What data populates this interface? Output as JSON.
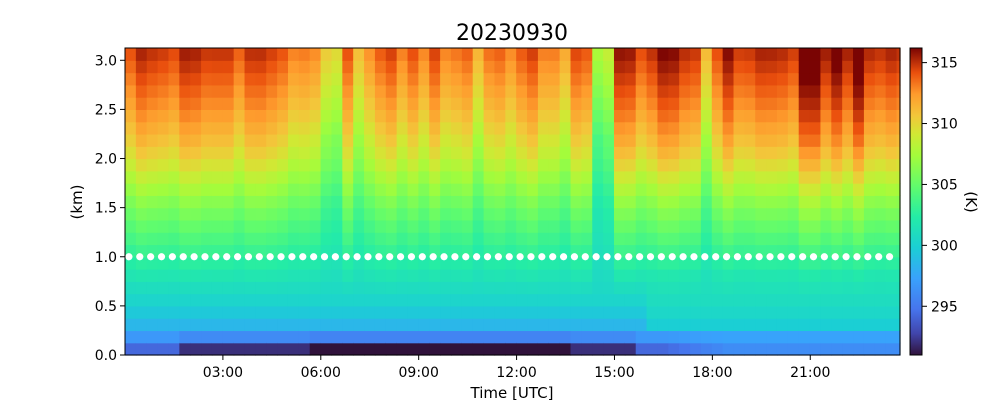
{
  "chart_data": {
    "type": "heatmap",
    "title": "20230930",
    "xlabel": "Time [UTC]",
    "ylabel": "(km)",
    "colorbar_label": "(K)",
    "colormap": "turbo",
    "x_range_hours": [
      0,
      23.75
    ],
    "x_ticks": [
      {
        "value": 3,
        "label": "03:00"
      },
      {
        "value": 6,
        "label": "06:00"
      },
      {
        "value": 9,
        "label": "09:00"
      },
      {
        "value": 12,
        "label": "12:00"
      },
      {
        "value": 15,
        "label": "15:00"
      },
      {
        "value": 18,
        "label": "18:00"
      },
      {
        "value": 21,
        "label": "21:00"
      }
    ],
    "y_range_km": [
      0,
      3.125
    ],
    "y_ticks": [
      {
        "value": 0.0,
        "label": "0.0"
      },
      {
        "value": 0.5,
        "label": "0.5"
      },
      {
        "value": 1.0,
        "label": "1.0"
      },
      {
        "value": 1.5,
        "label": "1.5"
      },
      {
        "value": 2.0,
        "label": "2.0"
      },
      {
        "value": 2.5,
        "label": "2.5"
      },
      {
        "value": 3.0,
        "label": "3.0"
      }
    ],
    "color_range_K": [
      291,
      316.2
    ],
    "colorbar_ticks": [
      {
        "value": 295,
        "label": "295"
      },
      {
        "value": 300,
        "label": "300"
      },
      {
        "value": 305,
        "label": "305"
      },
      {
        "value": 310,
        "label": "310"
      },
      {
        "value": 315,
        "label": "315"
      }
    ],
    "reference_line_km": 1.0,
    "reference_line_color": "#ffffff",
    "time_resolution_hours": 0.333,
    "height_resolution_km": 0.125,
    "approx_profile": {
      "height_km": [
        0.0,
        0.125,
        0.25,
        0.5,
        1.0,
        1.5,
        2.0,
        2.5,
        3.0
      ],
      "temperature_K": [
        293.0,
        295.5,
        298.0,
        300.0,
        302.5,
        305.0,
        308.5,
        311.0,
        313.0
      ]
    },
    "description_points": [
      {
        "time_h": 6.5,
        "height_km": 0.05,
        "value": 291.5
      },
      {
        "time_h": 12.5,
        "height_km": 0.05,
        "value": 291.5
      },
      {
        "time_h": 21.5,
        "height_km": 2.9,
        "value": 316
      }
    ]
  }
}
